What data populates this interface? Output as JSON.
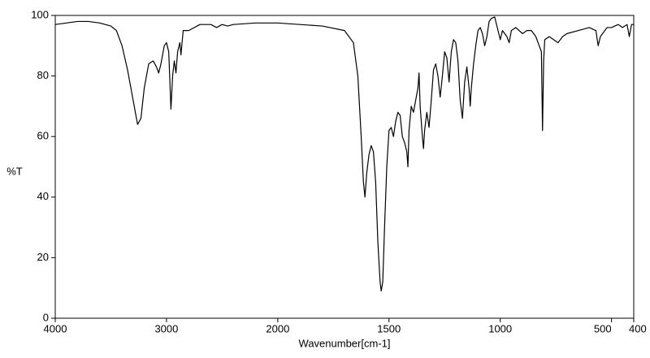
{
  "chart_data": {
    "type": "line",
    "ylabel": "%T",
    "xlabel": "Wavenumber[cm-1]",
    "color": "#000000",
    "xlim": [
      4000,
      400
    ],
    "xscale_break": 2000,
    "xticks": [
      4000,
      3000,
      2000,
      1500,
      1000,
      500,
      400
    ],
    "ylim": [
      0,
      100
    ],
    "yticks": [
      0,
      20,
      40,
      60,
      80,
      100
    ],
    "x": [
      4000,
      3800,
      3700,
      3600,
      3500,
      3450,
      3400,
      3350,
      3300,
      3260,
      3230,
      3200,
      3160,
      3120,
      3090,
      3070,
      3050,
      3020,
      3000,
      2980,
      2960,
      2945,
      2930,
      2915,
      2900,
      2880,
      2870,
      2850,
      2800,
      2700,
      2600,
      2550,
      2500,
      2450,
      2400,
      2200,
      2000,
      1900,
      1800,
      1700,
      1660,
      1640,
      1625,
      1615,
      1608,
      1600,
      1590,
      1580,
      1570,
      1560,
      1550,
      1540,
      1535,
      1528,
      1520,
      1510,
      1500,
      1490,
      1480,
      1470,
      1460,
      1450,
      1440,
      1430,
      1420,
      1415,
      1410,
      1400,
      1390,
      1380,
      1370,
      1365,
      1360,
      1350,
      1345,
      1340,
      1330,
      1320,
      1310,
      1300,
      1290,
      1280,
      1270,
      1260,
      1250,
      1240,
      1230,
      1220,
      1210,
      1200,
      1190,
      1180,
      1170,
      1160,
      1150,
      1140,
      1135,
      1130,
      1120,
      1110,
      1100,
      1090,
      1080,
      1070,
      1060,
      1050,
      1040,
      1025,
      1010,
      1000,
      990,
      970,
      960,
      950,
      930,
      900,
      880,
      860,
      840,
      825,
      815,
      810,
      805,
      800,
      780,
      760,
      740,
      720,
      700,
      650,
      600,
      570,
      560,
      550,
      520,
      500,
      470,
      450,
      430,
      420,
      410,
      400
    ],
    "values": [
      97,
      98,
      98,
      97.5,
      96.5,
      95,
      90,
      82,
      72,
      64,
      66,
      76,
      84,
      85,
      83,
      81,
      84,
      90,
      91,
      88,
      69,
      80,
      85,
      81,
      88,
      91,
      87,
      95,
      95,
      97,
      97,
      96,
      97,
      96.5,
      97,
      97.5,
      97.5,
      97,
      96.5,
      95,
      91,
      80,
      60,
      45,
      40,
      48,
      54,
      57,
      55,
      45,
      25,
      12,
      9,
      12,
      30,
      50,
      62,
      63,
      60,
      65,
      68,
      67,
      60,
      58,
      55,
      50,
      62,
      70,
      68,
      72,
      76,
      81,
      70,
      60,
      56,
      62,
      68,
      63,
      72,
      82,
      84,
      80,
      73,
      80,
      88,
      86,
      78,
      88,
      92,
      91,
      85,
      72,
      66,
      78,
      83,
      76,
      70,
      76,
      84,
      90,
      95,
      96,
      94,
      90,
      93,
      98,
      99,
      99.5,
      95,
      92,
      95,
      93,
      91,
      95,
      96,
      94,
      95,
      95,
      93,
      90,
      88,
      62,
      85,
      92,
      93,
      92,
      91,
      93,
      94,
      95,
      96,
      95,
      90,
      93,
      96,
      96,
      97,
      96,
      97,
      93,
      97,
      97
    ]
  }
}
